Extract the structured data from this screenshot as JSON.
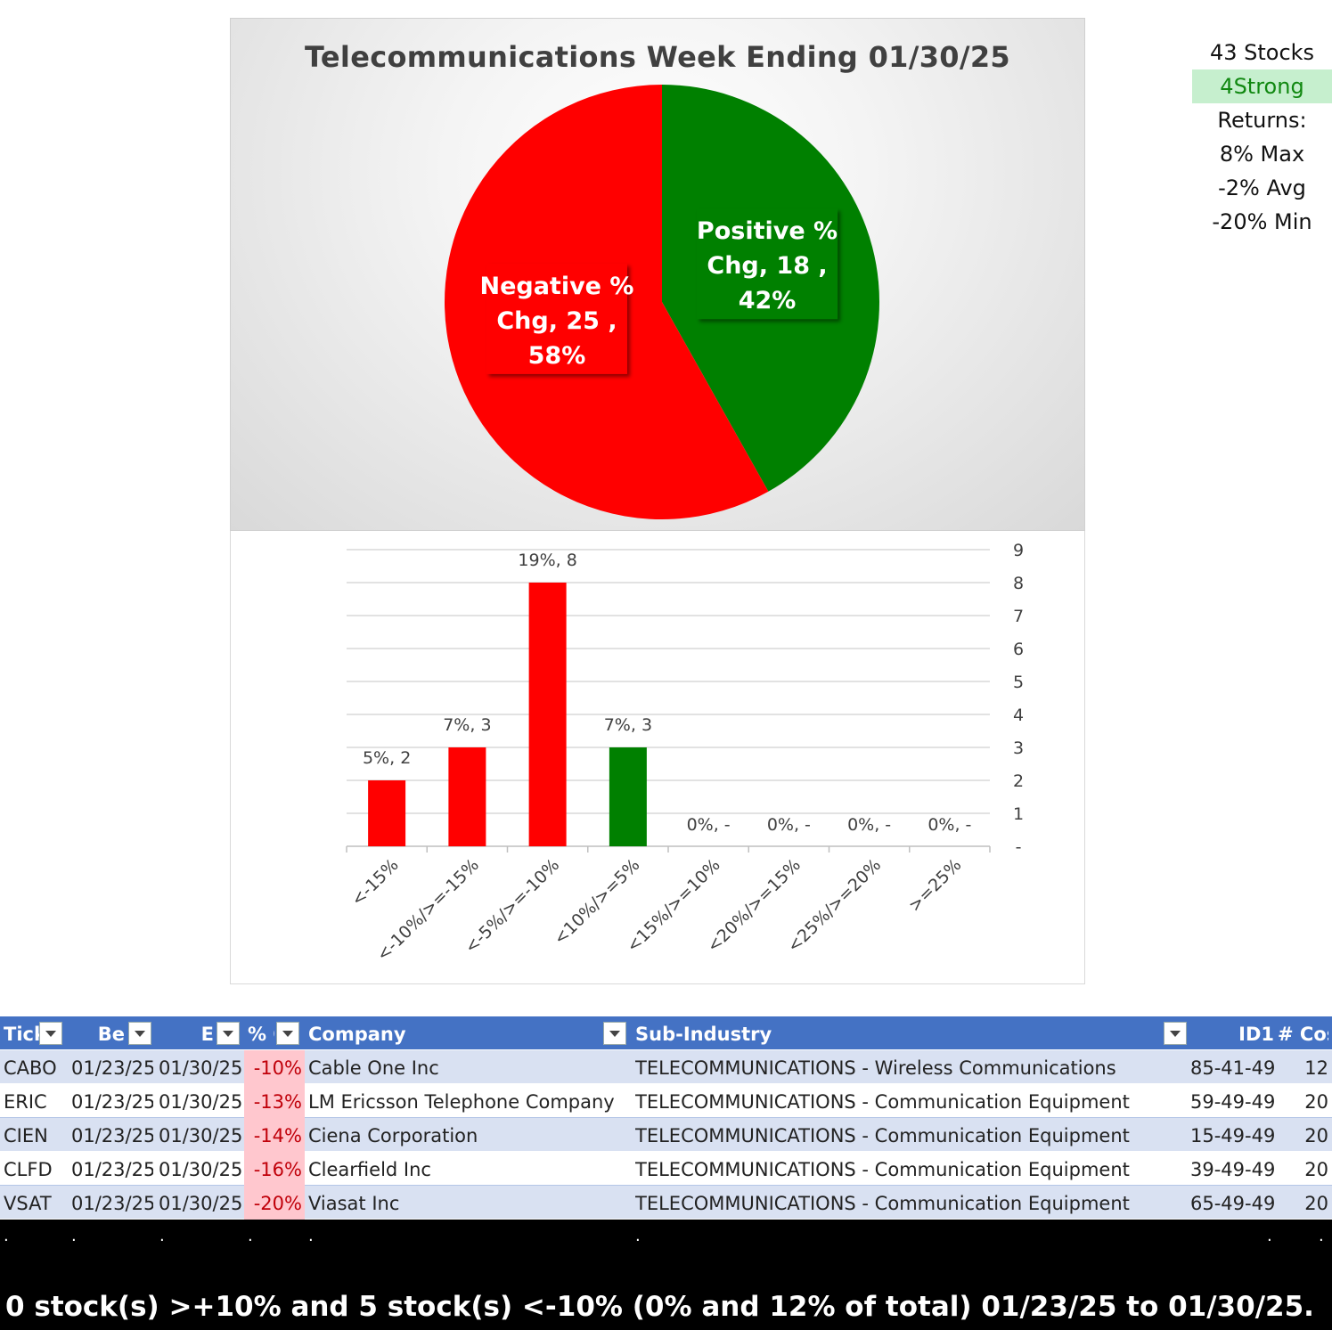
{
  "pie": {
    "title": "Telecommunications  Week Ending 01/30/25",
    "labels": [
      {
        "lines": [
          "Negative %",
          "Chg,  25 ,",
          "58%"
        ]
      },
      {
        "lines": [
          "Positive %",
          "Chg,  18 ,",
          "42%"
        ]
      }
    ]
  },
  "chart_data": [
    {
      "type": "pie",
      "title": "Telecommunications  Week Ending 01/30/25",
      "slices": [
        {
          "name": "Negative % Chg",
          "value": 25,
          "percent": 58,
          "color": "#ff0000"
        },
        {
          "name": "Positive % Chg",
          "value": 18,
          "percent": 42,
          "color": "#008000"
        }
      ]
    },
    {
      "type": "bar",
      "categories": [
        "<-15%",
        "<-10%/>=-15%",
        "<-5%/>=-10%",
        "<10%/>=5%",
        "<15%/>=10%",
        "<20%/>=15%",
        "<25%/>=20%",
        ">=25%"
      ],
      "values": [
        2,
        3,
        8,
        3,
        0,
        0,
        0,
        0
      ],
      "data_labels": [
        "5%,  2",
        "7%,  3",
        "19%,  8",
        "7%,  3",
        "0%,  -",
        "0%,  -",
        "0%,  -",
        "0%,  -"
      ],
      "colors": [
        "#ff0000",
        "#ff0000",
        "#ff0000",
        "#008000",
        "#008000",
        "#008000",
        "#008000",
        "#008000"
      ],
      "ylim": [
        0,
        9
      ],
      "yticks": [
        "-",
        "1",
        "2",
        "3",
        "4",
        "5",
        "6",
        "7",
        "8",
        "9"
      ],
      "yaxis_side": "right",
      "grid": true
    }
  ],
  "stats": {
    "stocks": "43 Stocks",
    "strong": "4Strong",
    "returns": "Returns:",
    "max": "8% Max",
    "avg": "-2% Avg",
    "min": "-20% Min"
  },
  "table": {
    "headers": [
      "Tick",
      "Be",
      "E",
      "% C",
      "Company",
      "Sub-Industry",
      "ID1",
      "# Cos"
    ],
    "rows": [
      [
        "CABO",
        "01/23/25",
        "01/30/25",
        "-10%",
        "Cable One Inc",
        "TELECOMMUNICATIONS - Wireless Communications",
        "85-41-49",
        "12"
      ],
      [
        "ERIC",
        "01/23/25",
        "01/30/25",
        "-13%",
        "LM Ericsson Telephone Company",
        "TELECOMMUNICATIONS - Communication Equipment",
        "59-49-49",
        "20"
      ],
      [
        "CIEN",
        "01/23/25",
        "01/30/25",
        "-14%",
        "Ciena Corporation",
        "TELECOMMUNICATIONS - Communication Equipment",
        "15-49-49",
        "20"
      ],
      [
        "CLFD",
        "01/23/25",
        "01/30/25",
        "-16%",
        "Clearfield Inc",
        "TELECOMMUNICATIONS - Communication Equipment",
        "39-49-49",
        "20"
      ],
      [
        "VSAT",
        "01/23/25",
        "01/30/25",
        "-20%",
        "Viasat Inc",
        "TELECOMMUNICATIONS - Communication Equipment",
        "65-49-49",
        "20"
      ]
    ]
  },
  "footer": {
    "dots": [
      ".",
      ".",
      ".",
      ".",
      ".",
      ".",
      ".",
      "."
    ],
    "summary": "0 stock(s) >+10% and 5 stock(s) <-10% (0% and 12% of total) 01/23/25 to 01/30/25."
  }
}
